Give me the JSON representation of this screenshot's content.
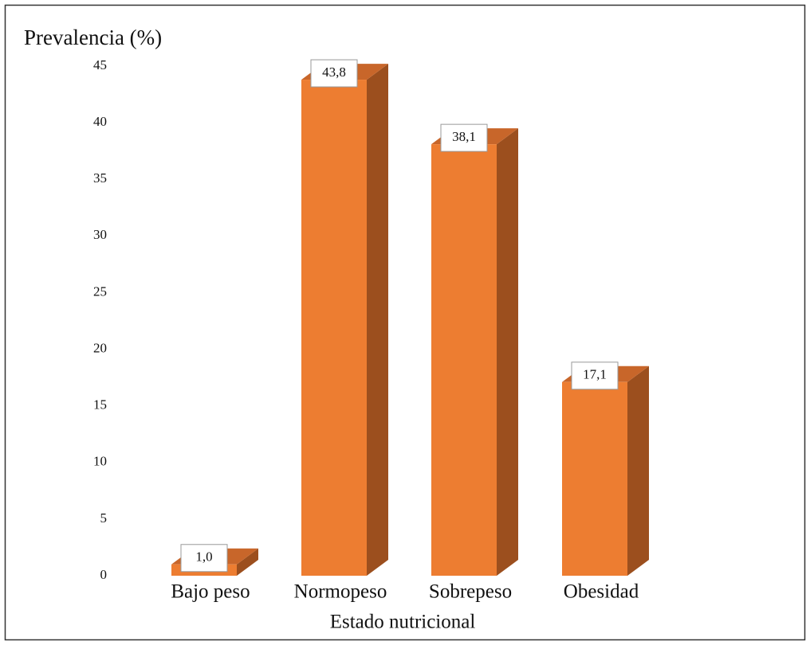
{
  "chart_data": {
    "type": "bar3d",
    "y_label": "Prevalencia (%)",
    "x_label": "Estado nutricional",
    "categories": [
      "Bajo peso",
      "Normopeso",
      "Sobrepeso",
      "Obesidad"
    ],
    "values": [
      1.0,
      43.8,
      38.1,
      17.1
    ],
    "value_labels": [
      "1,0",
      "43,8",
      "38,1",
      "17,1"
    ],
    "color": "#ed7d31",
    "ylim": [
      0,
      45
    ],
    "yticks": [
      0,
      5,
      10,
      15,
      20,
      25,
      30,
      35,
      40,
      45
    ],
    "grid": false
  }
}
